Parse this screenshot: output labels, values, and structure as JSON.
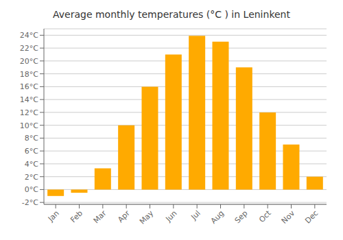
{
  "chart_data": {
    "type": "bar",
    "title": "Average monthly temperatures (°C ) in Leninkent",
    "categories": [
      "Jan",
      "Feb",
      "Mar",
      "Apr",
      "May",
      "Jun",
      "Jul",
      "Aug",
      "Sep",
      "Oct",
      "Nov",
      "Dec"
    ],
    "values": [
      -1.0,
      -0.5,
      3.3,
      10.0,
      16.0,
      21.0,
      23.9,
      23.0,
      19.0,
      12.0,
      7.0,
      2.0
    ],
    "color": "#FFAA00",
    "ylim": [
      -2.3,
      25
    ],
    "yticks": [
      {
        "value": -2,
        "label": "-2°C"
      },
      {
        "value": 0,
        "label": "0°C"
      },
      {
        "value": 2,
        "label": "2°C"
      },
      {
        "value": 4,
        "label": "4°C"
      },
      {
        "value": 6,
        "label": "6°C"
      },
      {
        "value": 8,
        "label": "8°C"
      },
      {
        "value": 10,
        "label": "10°C"
      },
      {
        "value": 12,
        "label": "12°C"
      },
      {
        "value": 14,
        "label": "14°C"
      },
      {
        "value": 16,
        "label": "16°C"
      },
      {
        "value": 18,
        "label": "18°C"
      },
      {
        "value": 20,
        "label": "20°C"
      },
      {
        "value": 22,
        "label": "22°C"
      },
      {
        "value": 24,
        "label": "24°C"
      }
    ],
    "grid": true
  }
}
